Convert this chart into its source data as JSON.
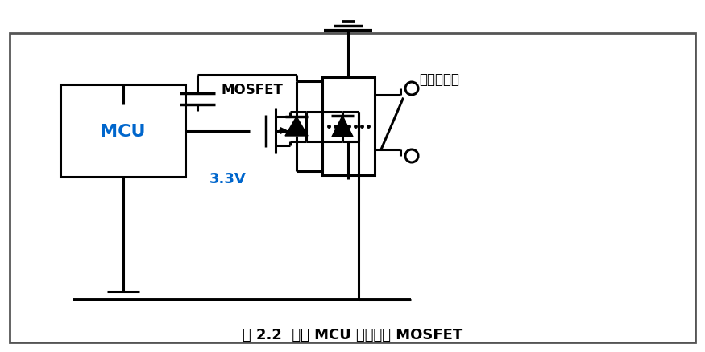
{
  "title": "图 2.2  通过 MCU 直接驱动 MOSFET",
  "bg_color": "#ffffff",
  "line_color": "#000000",
  "mcu_label": "MCU",
  "mcu_text_color": "#0066cc",
  "mosfet_label": "MOSFET",
  "relay_label": "功率继电器",
  "voltage_label": "3.3V",
  "voltage_color": "#0066cc",
  "fig_width": 8.75,
  "fig_height": 4.39,
  "dpi": 100
}
